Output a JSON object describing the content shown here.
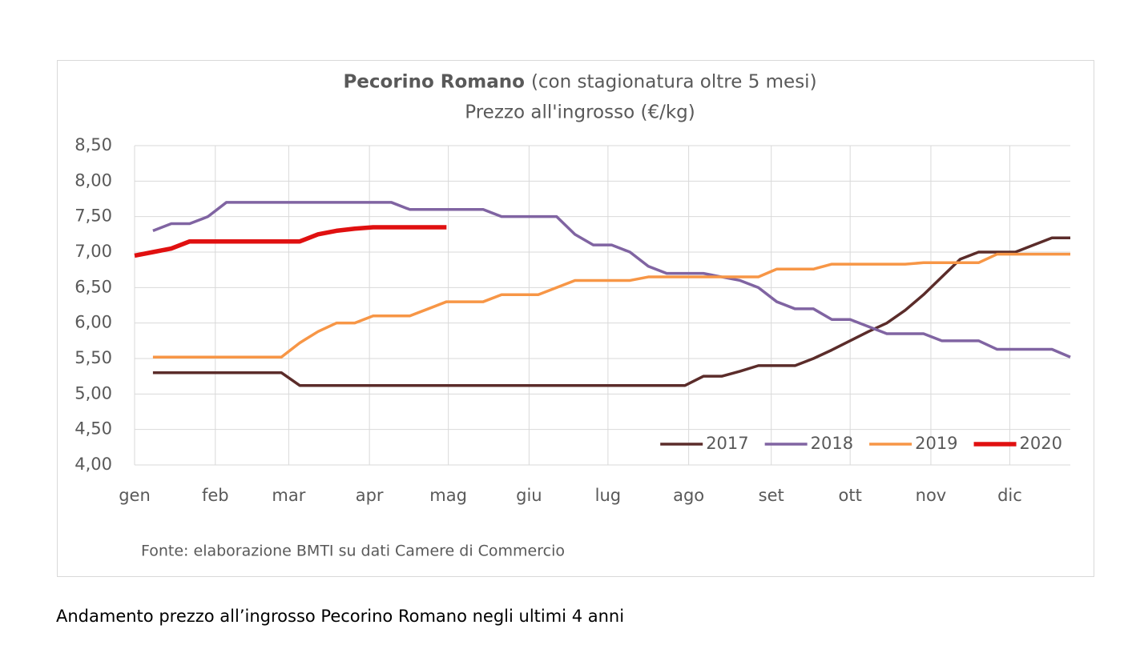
{
  "chart_data": {
    "type": "line",
    "title": "Pecorino Romano",
    "title_note": "(con stagionatura oltre 5 mesi)",
    "subtitle": "Prezzo all'ingrosso (€/kg)",
    "source": "Fonte: elaborazione BMTI su dati Camere di Commercio",
    "caption": "Andamento prezzo all’ingrosso Pecorino Romano negli ultimi 4 anni",
    "x": [
      0,
      1,
      2,
      3,
      4,
      5,
      6,
      7,
      8,
      9,
      10,
      11,
      12,
      13,
      14,
      15,
      16,
      17,
      18,
      19,
      20,
      21,
      22,
      23,
      24,
      25,
      26,
      27,
      28,
      29,
      30,
      31,
      32,
      33,
      34,
      35,
      36,
      37,
      38,
      39,
      40,
      41,
      42,
      43,
      44,
      45,
      46,
      47,
      48,
      49,
      50,
      51
    ],
    "xlim": [
      0,
      51
    ],
    "xticks": [
      {
        "value": 0,
        "label": "gen"
      },
      {
        "value": 4.4,
        "label": "feb"
      },
      {
        "value": 8.4,
        "label": "mar"
      },
      {
        "value": 12.8,
        "label": "apr"
      },
      {
        "value": 17.1,
        "label": "mag"
      },
      {
        "value": 21.5,
        "label": "giu"
      },
      {
        "value": 25.8,
        "label": "lug"
      },
      {
        "value": 30.2,
        "label": "ago"
      },
      {
        "value": 34.7,
        "label": "set"
      },
      {
        "value": 39,
        "label": "ott"
      },
      {
        "value": 43.4,
        "label": "nov"
      },
      {
        "value": 47.7,
        "label": "dic"
      }
    ],
    "ylim": [
      4,
      8.5
    ],
    "yticks": [
      {
        "value": 4,
        "label": "4,00"
      },
      {
        "value": 4.5,
        "label": "4,50"
      },
      {
        "value": 5,
        "label": "5,00"
      },
      {
        "value": 5.5,
        "label": "5,50"
      },
      {
        "value": 6,
        "label": "6,00"
      },
      {
        "value": 6.5,
        "label": "6,50"
      },
      {
        "value": 7,
        "label": "7,00"
      },
      {
        "value": 7.5,
        "label": "7,50"
      },
      {
        "value": 8,
        "label": "8,00"
      },
      {
        "value": 8.5,
        "label": "8,50"
      }
    ],
    "grid": true,
    "legend": "bottom-right",
    "series": [
      {
        "name": "2017",
        "color": "#5b2c2a",
        "width": 3.5,
        "values": [
          null,
          5.3,
          5.3,
          5.3,
          5.3,
          5.3,
          5.3,
          5.3,
          5.3,
          5.12,
          5.12,
          5.12,
          5.12,
          5.12,
          5.12,
          5.12,
          5.12,
          5.12,
          5.12,
          5.12,
          5.12,
          5.12,
          5.12,
          5.12,
          5.12,
          5.12,
          5.12,
          5.12,
          5.12,
          5.12,
          5.12,
          5.25,
          5.25,
          5.32,
          5.4,
          5.4,
          5.4,
          5.5,
          5.62,
          5.75,
          5.88,
          6.0,
          6.18,
          6.4,
          6.65,
          6.9,
          7.0,
          7.0,
          7.0,
          7.1,
          7.2,
          7.2
        ]
      },
      {
        "name": "2018",
        "color": "#8064a2",
        "width": 3.5,
        "values": [
          null,
          7.3,
          7.4,
          7.4,
          7.5,
          7.7,
          7.7,
          7.7,
          7.7,
          7.7,
          7.7,
          7.7,
          7.7,
          7.7,
          7.7,
          7.6,
          7.6,
          7.6,
          7.6,
          7.6,
          7.5,
          7.5,
          7.5,
          7.5,
          7.25,
          7.1,
          7.1,
          7.0,
          6.8,
          6.7,
          6.7,
          6.7,
          6.65,
          6.6,
          6.5,
          6.3,
          6.2,
          6.2,
          6.05,
          6.05,
          5.95,
          5.85,
          5.85,
          5.85,
          5.75,
          5.75,
          5.75,
          5.63,
          5.63,
          5.63,
          5.63,
          5.52
        ]
      },
      {
        "name": "2019",
        "color": "#f79646",
        "width": 3.5,
        "values": [
          null,
          5.52,
          5.52,
          5.52,
          5.52,
          5.52,
          5.52,
          5.52,
          5.52,
          5.72,
          5.88,
          6.0,
          6.0,
          6.1,
          6.1,
          6.1,
          6.2,
          6.3,
          6.3,
          6.3,
          6.4,
          6.4,
          6.4,
          6.5,
          6.6,
          6.6,
          6.6,
          6.6,
          6.65,
          6.65,
          6.65,
          6.65,
          6.65,
          6.65,
          6.65,
          6.76,
          6.76,
          6.76,
          6.83,
          6.83,
          6.83,
          6.83,
          6.83,
          6.85,
          6.85,
          6.85,
          6.85,
          6.97,
          6.97,
          6.97,
          6.97,
          6.97
        ]
      },
      {
        "name": "2020",
        "color": "#e01010",
        "width": 5.5,
        "values": [
          6.95,
          7.0,
          7.05,
          7.15,
          7.15,
          7.15,
          7.15,
          7.15,
          7.15,
          7.15,
          7.25,
          7.3,
          7.33,
          7.35,
          7.35,
          7.35,
          7.35,
          7.35,
          null,
          null,
          null,
          null,
          null,
          null,
          null,
          null,
          null,
          null,
          null,
          null,
          null,
          null,
          null,
          null,
          null,
          null,
          null,
          null,
          null,
          null,
          null,
          null,
          null,
          null,
          null,
          null,
          null,
          null,
          null,
          null,
          null,
          null
        ]
      }
    ]
  }
}
